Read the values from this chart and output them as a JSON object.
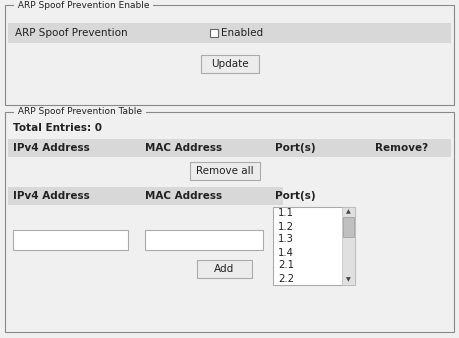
{
  "bg_color": "#f0f0f0",
  "white": "#ffffff",
  "border_color": "#888888",
  "header_bg": "#d8d8d8",
  "panel1_title": "ARP Spoof Prevention Enable",
  "panel1_row_label": "ARP Spoof Prevention",
  "panel1_checkbox_label": "Enabled",
  "panel1_button": "Update",
  "panel2_title": "ARP Spoof Prevention Table",
  "total_entries": "Total Entries: 0",
  "table_headers": [
    "IPv4 Address",
    "MAC Address",
    "Port(s)",
    "Remove?"
  ],
  "remove_all_button": "Remove all",
  "add_form_headers": [
    "IPv4 Address",
    "MAC Address",
    "Port(s)"
  ],
  "port_list": [
    "1.1",
    "1.2",
    "1.3",
    "1.4",
    "2.1",
    "2.2"
  ],
  "add_button": "Add",
  "text_color": "#222222",
  "btn_face": "#ececec",
  "btn_edge": "#aaaaaa",
  "scrollbar_bg": "#e0e0e0",
  "scrollbar_thumb": "#c0c0c0"
}
